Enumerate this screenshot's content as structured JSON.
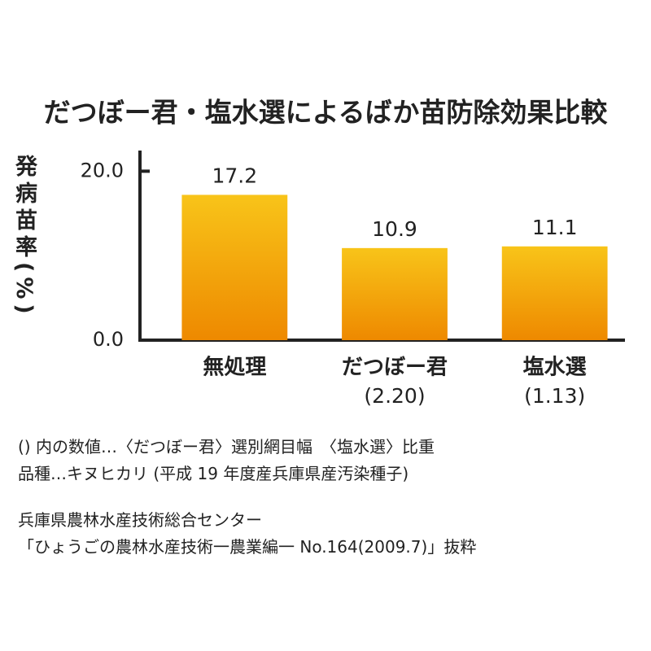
{
  "chart_data": {
    "type": "bar",
    "title": "だつぼー君・塩水選によるばか苗防除効果比較",
    "y_label": "発病苗率(%)",
    "categories": [
      "無処理",
      "だつぼー君",
      "塩水選"
    ],
    "category_notes": [
      null,
      "(2.20)",
      "(1.13)"
    ],
    "values": [
      17.2,
      10.9,
      11.1
    ],
    "colors": [
      "#f8c419",
      "#ee8900"
    ],
    "ylim": [
      0,
      21
    ],
    "yticks": [
      {
        "value": 0,
        "label": "0.0"
      },
      {
        "value": 20,
        "label": "20.0"
      }
    ]
  },
  "notes": [
    "() 内の数値…〈だつぼー君〉選別網目幅　〈塩水選〉比重",
    "品種…キヌヒカリ (平成 19 年度産兵庫県産汚染種子)",
    "兵庫県農林水産技術総合センター",
    "「ひょうごの農林水産技術一農業編一 No.164(2009.7)」抜粋"
  ]
}
